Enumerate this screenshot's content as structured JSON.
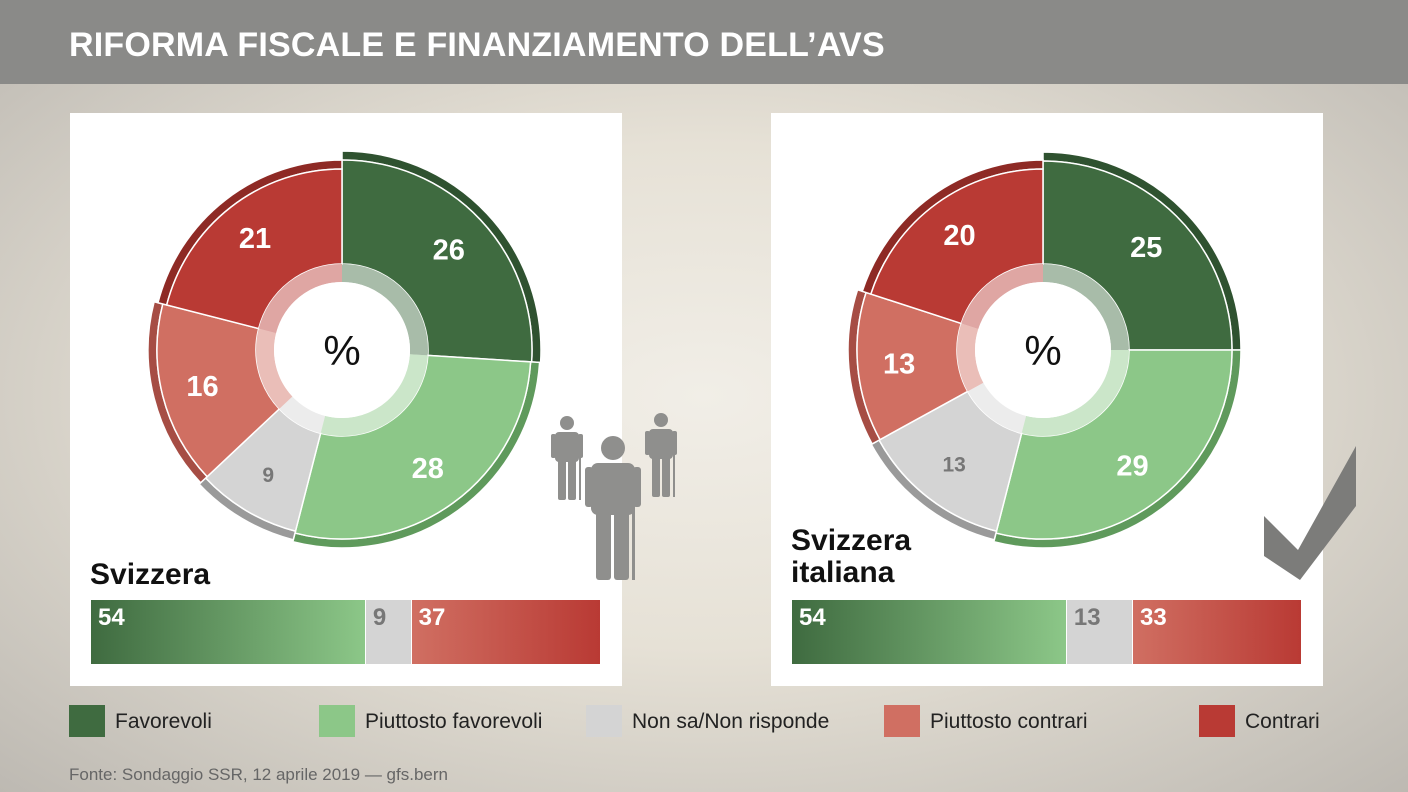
{
  "title": "RIFORMA FISCALE E FINANZIAMENTO DELL’AVS",
  "colors": {
    "favorevoli": "#3f6b40",
    "piuttosto_favorevoli": "#8cc788",
    "non_sa": "#d4d4d4",
    "piuttosto_contrari": "#d06f62",
    "contrari": "#b93a34"
  },
  "chart_data": [
    {
      "type": "pie",
      "title": "Svizzera",
      "center_label": "%",
      "categories": [
        "Favorevoli",
        "Piuttosto favorevoli",
        "Non sa/Non risponde",
        "Piuttosto contrari",
        "Contrari"
      ],
      "values": [
        26,
        28,
        9,
        16,
        21
      ],
      "summary_bar": {
        "values": [
          54,
          9,
          37
        ]
      }
    },
    {
      "type": "pie",
      "title": "Svizzera italiana",
      "center_label": "%",
      "categories": [
        "Favorevoli",
        "Piuttosto favorevoli",
        "Non sa/Non risponde",
        "Piuttosto contrari",
        "Contrari"
      ],
      "values": [
        25,
        29,
        13,
        13,
        20
      ],
      "summary_bar": {
        "values": [
          54,
          13,
          33
        ]
      }
    }
  ],
  "legend": [
    {
      "label": "Favorevoli",
      "color": "#3f6b40"
    },
    {
      "label": "Piuttosto favorevoli",
      "color": "#8cc788"
    },
    {
      "label": "Non sa/Non risponde",
      "color": "#d4d4d4"
    },
    {
      "label": "Piuttosto contrari",
      "color": "#d06f62"
    },
    {
      "label": "Contrari",
      "color": "#b93a34"
    }
  ],
  "source": "Fonte: Sondaggio SSR, 12 aprile 2019 — gfs.bern",
  "icons": [
    "elderly-people-icon",
    "checkmark-icon"
  ]
}
